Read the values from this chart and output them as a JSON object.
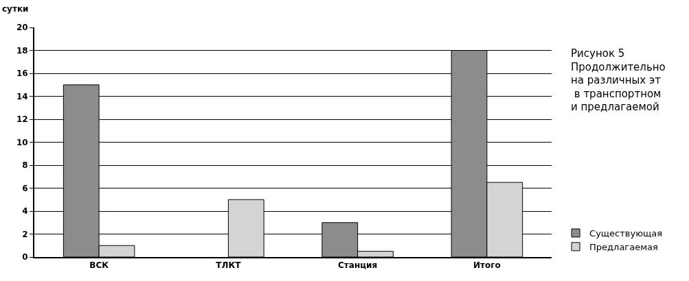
{
  "chart_data": {
    "type": "bar",
    "ylabel": "сутки",
    "categories": [
      "ВСК",
      "ТЛКТ",
      "Станция",
      "Итого"
    ],
    "series": [
      {
        "name": "Существующая",
        "color": "#8c8c8c",
        "values": [
          15,
          null,
          3,
          18
        ]
      },
      {
        "name": "Предлагаемая",
        "color": "#d4d4d4",
        "values": [
          1,
          5,
          0.5,
          6.5
        ]
      }
    ],
    "ylim": [
      0,
      20
    ],
    "yticks": [
      0,
      2,
      4,
      6,
      8,
      10,
      12,
      14,
      16,
      18,
      20
    ],
    "grid": "y",
    "legend": "bottom right",
    "annotations": [
      "Рисунок 5\nПродолжительно\nна различных эт\n в транспортном\nи предлагаемой"
    ]
  }
}
